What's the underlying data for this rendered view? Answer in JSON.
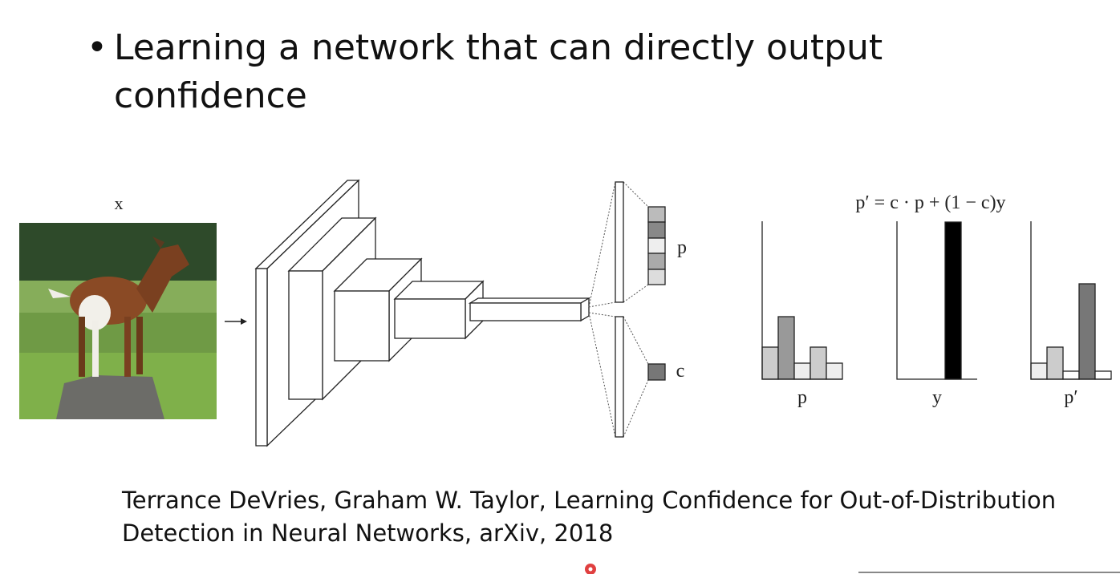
{
  "bullet": {
    "text": "Learning a network that can directly output confidence"
  },
  "diagram": {
    "input_label": "x",
    "p_label": "p",
    "c_label": "c",
    "formula": "p′ = c · p + (1 − c)y",
    "chart_labels": [
      "p",
      "y",
      "p′"
    ]
  },
  "citation": {
    "lines": [
      "Terrance DeVries, Graham W. Taylor, Learning Confidence for Out-of-Distribution",
      "Detection in Neural Networks, arXiv, 2018"
    ]
  }
}
